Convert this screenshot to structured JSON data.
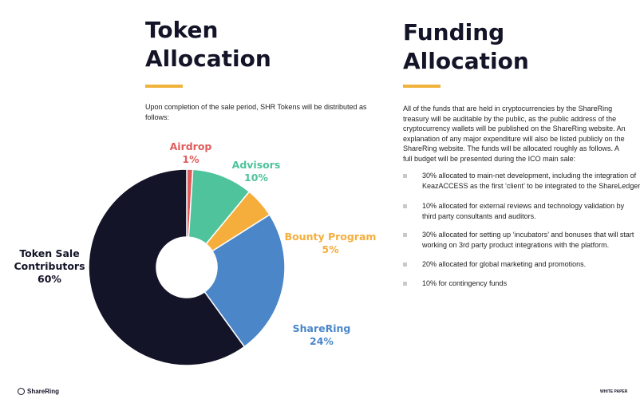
{
  "token_section": {
    "title_line1": "Token",
    "title_line2": "Allocation",
    "intro": "Upon completion of the sale period, SHR Tokens will be distributed as follows:"
  },
  "funding_section": {
    "title_line1": "Funding",
    "title_line2": "Allocation",
    "intro": "All of the funds that are held in cryptocurrencies by the ShareRing treasury will be auditable by the public, as the public address of the cryptocurrency wallets will be published on the ShareRing website. An explanation of any major expenditure will also be listed publicly on the ShareRing website. The funds will be allocated roughly as follows. A full budget will be presented during the ICO main sale:",
    "items": [
      {
        "line1": "30% allocated to main-net development, including the integration of",
        "line2": "KeazACCESS as the first ‘client’ to be integrated to the ShareLedger"
      },
      {
        "line1": "10% allocated for external reviews and technology validation by",
        "line2": "third party consultants and auditors."
      },
      {
        "line1": "30% allocated for setting up ‘incubators’ and bonuses that will start",
        "line2": "working on 3rd party product integrations with the platform."
      },
      {
        "line1": "20% allocated for global marketing and promotions.",
        "line2": ""
      },
      {
        "line1": "10% for contingency funds",
        "line2": ""
      }
    ]
  },
  "colors": {
    "accent": "#F0B33C",
    "airdrop": "#E05C5C",
    "advisors": "#4FC39B",
    "bounty": "#F5AE3C",
    "sharering": "#4A86C8",
    "token_sale": "#141428"
  },
  "chart_data": {
    "type": "pie",
    "style": "donut",
    "categories": [
      "Airdrop",
      "Advisors",
      "Bounty Program",
      "ShareRing",
      "Token Sale Contributors"
    ],
    "values": [
      1,
      10,
      5,
      24,
      60
    ],
    "labels": [
      {
        "name_lines": [
          "Airdrop"
        ],
        "pct": "1%"
      },
      {
        "name_lines": [
          "Advisors"
        ],
        "pct": "10%"
      },
      {
        "name_lines": [
          "Bounty Program"
        ],
        "pct": "5%"
      },
      {
        "name_lines": [
          "ShareRing"
        ],
        "pct": "24%"
      },
      {
        "name_lines": [
          "Token Sale",
          "Contributors"
        ],
        "pct": "60%"
      }
    ]
  },
  "footer": {
    "logo_text": "ShareRing",
    "right_text": "WHITE PAPER"
  }
}
